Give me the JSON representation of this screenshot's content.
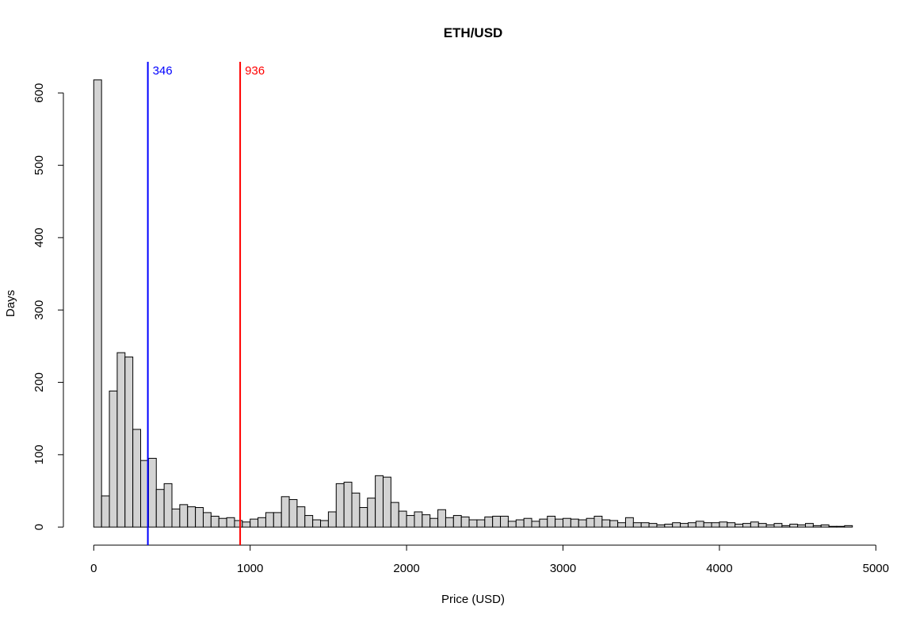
{
  "chart_data": {
    "type": "histogram",
    "title": "ETH/USD",
    "x_label": "Price (USD)",
    "y_label": "Days",
    "bins": [
      0,
      50,
      100,
      150,
      200,
      250,
      300,
      350,
      400,
      450,
      500,
      550,
      600,
      650,
      700,
      750,
      800,
      850,
      900,
      950,
      1000,
      1050,
      1100,
      1150,
      1200,
      1250,
      1300,
      1350,
      1400,
      1450,
      1500,
      1550,
      1600,
      1650,
      1700,
      1750,
      1800,
      1850,
      1900,
      1950,
      2000,
      2050,
      2100,
      2150,
      2200,
      2250,
      2300,
      2350,
      2400,
      2450,
      2500,
      2550,
      2600,
      2650,
      2700,
      2750,
      2800,
      2850,
      2900,
      2950,
      3000,
      3050,
      3100,
      3150,
      3200,
      3250,
      3300,
      3350,
      3400,
      3450,
      3500,
      3550,
      3600,
      3650,
      3700,
      3750,
      3800,
      3850,
      3900,
      3950,
      4000,
      4050,
      4100,
      4150,
      4200,
      4250,
      4300,
      4350,
      4400,
      4450,
      4500,
      4550,
      4600,
      4650,
      4700,
      4750,
      4800,
      4850
    ],
    "values": [
      618,
      43,
      188,
      241,
      235,
      135,
      92,
      95,
      52,
      60,
      25,
      31,
      28,
      27,
      20,
      15,
      12,
      13,
      9,
      7,
      11,
      13,
      20,
      20,
      42,
      38,
      28,
      16,
      10,
      9,
      21,
      60,
      62,
      47,
      27,
      40,
      71,
      69,
      34,
      22,
      16,
      21,
      17,
      12,
      24,
      13,
      16,
      14,
      10,
      10,
      14,
      15,
      15,
      8,
      10,
      12,
      8,
      11,
      15,
      11,
      12,
      11,
      10,
      12,
      15,
      10,
      9,
      6,
      13,
      6,
      6,
      5,
      3,
      4,
      6,
      5,
      6,
      8,
      6,
      6,
      7,
      6,
      4,
      5,
      7,
      5,
      3,
      5,
      2,
      4,
      3,
      5,
      2,
      3,
      1,
      1,
      2
    ],
    "color": "#d3d3d3",
    "xlim": [
      -194,
      5044
    ],
    "ylim": [
      -25,
      643
    ],
    "xticks": [
      0,
      1000,
      2000,
      3000,
      4000,
      5000
    ],
    "yticks": [
      0,
      100,
      200,
      300,
      400,
      500,
      600
    ],
    "vlines": [
      {
        "value": 346,
        "color": "#0000ff"
      },
      {
        "value": 936,
        "color": "#ff0000"
      }
    ]
  }
}
